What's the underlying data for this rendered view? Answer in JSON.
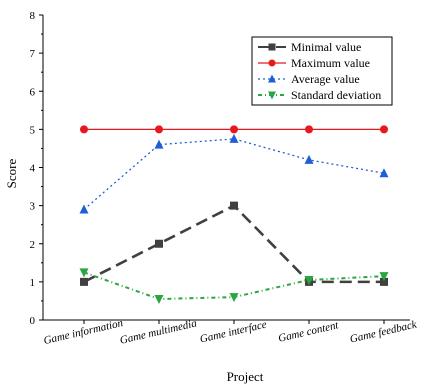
{
  "chart_data": {
    "type": "line",
    "title": "",
    "xlabel": "Project",
    "ylabel": "Score",
    "ylim": [
      0,
      8
    ],
    "yticks": [
      0,
      1,
      2,
      3,
      4,
      5,
      6,
      7,
      8
    ],
    "categories": [
      "Game information",
      "Game multimedia",
      "Game interface",
      "Game content",
      "Game feedback"
    ],
    "legend_position": "top-right",
    "grid": false,
    "series": [
      {
        "name": "Minimal value",
        "values": [
          1,
          2,
          3,
          1,
          1
        ],
        "color": "#404040",
        "marker": "square",
        "line": "dashed"
      },
      {
        "name": "Maximum value",
        "values": [
          5,
          5,
          5,
          5,
          5
        ],
        "color": "#e8191e",
        "marker": "circle",
        "line": "solid"
      },
      {
        "name": "Average value",
        "values": [
          2.9,
          4.6,
          4.75,
          4.2,
          3.85
        ],
        "color": "#1f5fd6",
        "marker": "triangle-up",
        "line": "dotted"
      },
      {
        "name": "Standard deviation",
        "values": [
          1.25,
          0.55,
          0.6,
          1.05,
          1.15
        ],
        "color": "#2aa640",
        "marker": "triangle-down",
        "line": "dash-dot"
      }
    ]
  }
}
